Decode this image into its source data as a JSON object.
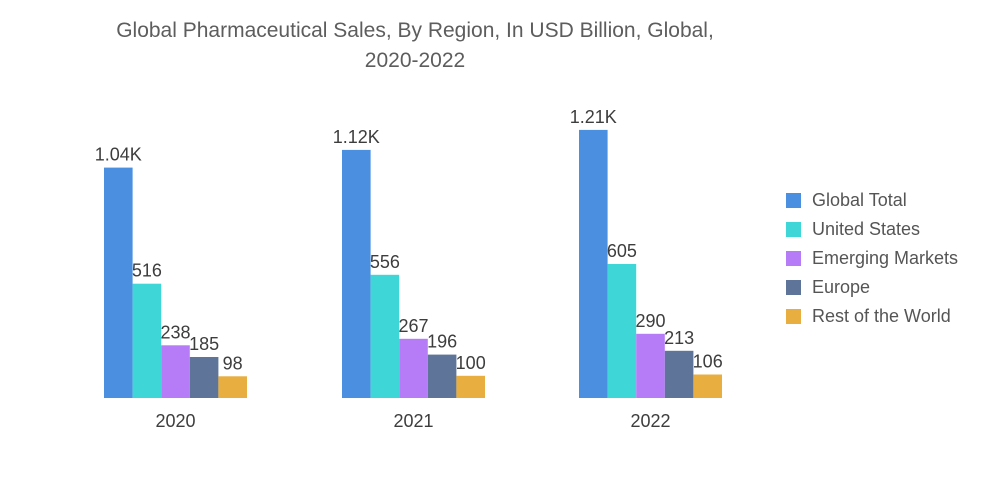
{
  "chart_data": {
    "type": "bar",
    "title_lines": [
      "Global Pharmaceutical Sales, By Region, In USD Billion, Global,",
      "2020-2022"
    ],
    "categories": [
      "2020",
      "2021",
      "2022"
    ],
    "series": [
      {
        "name": "Global Total",
        "color": "#4a8fe0",
        "values": [
          1040,
          1120,
          1210
        ],
        "labels": [
          "1.04K",
          "1.12K",
          "1.21K"
        ]
      },
      {
        "name": "United States",
        "color": "#3fd6d8",
        "values": [
          516,
          556,
          605
        ],
        "labels": [
          "516",
          "556",
          "605"
        ]
      },
      {
        "name": "Emerging Markets",
        "color": "#b67cf7",
        "values": [
          238,
          267,
          290
        ],
        "labels": [
          "238",
          "267",
          "290"
        ]
      },
      {
        "name": "Europe",
        "color": "#5f7499",
        "values": [
          185,
          196,
          213
        ],
        "labels": [
          "185",
          "196",
          "213"
        ]
      },
      {
        "name": "Rest of the World",
        "color": "#e8ae3f",
        "values": [
          98,
          100,
          106
        ],
        "labels": [
          "98",
          "100",
          "106"
        ]
      }
    ],
    "ylim": [
      0,
      1300
    ],
    "xlabel": "",
    "ylabel": "",
    "grid": false,
    "legend_position": "right"
  }
}
